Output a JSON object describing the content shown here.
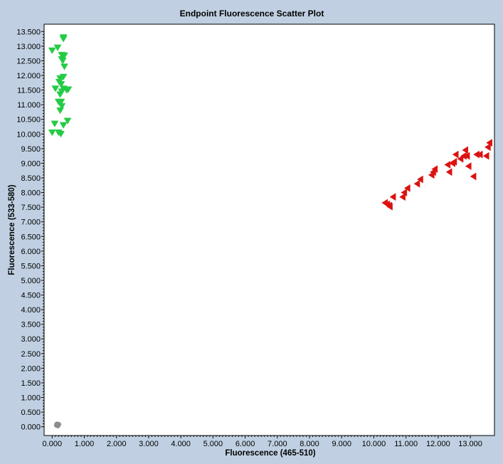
{
  "chart_data": {
    "type": "scatter",
    "title": "Endpoint Fluorescence Scatter Plot",
    "xlabel": "Fluorescence (465-510)",
    "ylabel": "Fluorescence (533-580)",
    "xlim": [
      -0.25,
      13.75
    ],
    "ylim": [
      -0.3,
      13.75
    ],
    "x_ticks": [
      0,
      1,
      2,
      3,
      4,
      5,
      6,
      7,
      8,
      9,
      10,
      11,
      12,
      13
    ],
    "x_tick_labels": [
      "0.000",
      "1.000",
      "2.000",
      "3.000",
      "4.000",
      "5.000",
      "6.000",
      "7.000",
      "8.000",
      "9.000",
      "10.000",
      "11.000",
      "12.000",
      "13.000"
    ],
    "y_ticks": [
      0,
      0.5,
      1,
      1.5,
      2,
      2.5,
      3,
      3.5,
      4,
      4.5,
      5,
      5.5,
      6,
      6.5,
      7,
      7.5,
      8,
      8.5,
      9,
      9.5,
      10,
      10.5,
      11,
      11.5,
      12,
      12.5,
      13,
      13.5
    ],
    "y_tick_labels": [
      "0.000",
      "0.500",
      "1.000",
      "1.500",
      "2.000",
      "2.500",
      "3.000",
      "3.500",
      "4.000",
      "4.500",
      "5.000",
      "5.500",
      "6.000",
      "6.500",
      "7.000",
      "7.500",
      "8.000",
      "8.500",
      "9.000",
      "9.500",
      "10.000",
      "10.500",
      "11.000",
      "11.500",
      "12.000",
      "12.500",
      "13.000",
      "13.500"
    ],
    "grid": false,
    "series": [
      {
        "marker": "triangle-down",
        "color": "#22cc44",
        "points": [
          [
            0.35,
            13.3
          ],
          [
            0.35,
            13.25
          ],
          [
            0.17,
            12.95
          ],
          [
            0.0,
            12.85
          ],
          [
            0.3,
            12.7
          ],
          [
            0.38,
            12.68
          ],
          [
            0.3,
            12.55
          ],
          [
            0.33,
            12.5
          ],
          [
            0.38,
            12.3
          ],
          [
            0.35,
            11.95
          ],
          [
            0.25,
            11.9
          ],
          [
            0.22,
            11.78
          ],
          [
            0.28,
            11.7
          ],
          [
            0.1,
            11.55
          ],
          [
            0.35,
            11.55
          ],
          [
            0.45,
            11.5
          ],
          [
            0.5,
            11.52
          ],
          [
            0.3,
            11.45
          ],
          [
            0.25,
            11.35
          ],
          [
            0.2,
            11.1
          ],
          [
            0.28,
            11.1
          ],
          [
            0.3,
            10.95
          ],
          [
            0.25,
            10.8
          ],
          [
            0.48,
            10.45
          ],
          [
            0.08,
            10.35
          ],
          [
            0.35,
            10.3
          ],
          [
            0.0,
            10.05
          ],
          [
            0.2,
            10.05
          ],
          [
            0.27,
            10.0
          ]
        ]
      },
      {
        "marker": "triangle-left",
        "color": "#dd1111",
        "points": [
          [
            10.35,
            7.65
          ],
          [
            10.42,
            7.6
          ],
          [
            10.48,
            7.55
          ],
          [
            10.5,
            7.52
          ],
          [
            10.6,
            7.85
          ],
          [
            10.9,
            7.85
          ],
          [
            10.95,
            8.0
          ],
          [
            11.05,
            8.15
          ],
          [
            11.35,
            8.3
          ],
          [
            11.45,
            8.45
          ],
          [
            11.8,
            8.6
          ],
          [
            11.85,
            8.7
          ],
          [
            11.9,
            8.8
          ],
          [
            12.3,
            8.95
          ],
          [
            12.35,
            8.7
          ],
          [
            12.45,
            9.0
          ],
          [
            12.5,
            9.05
          ],
          [
            12.55,
            9.3
          ],
          [
            12.7,
            9.15
          ],
          [
            12.8,
            9.25
          ],
          [
            12.85,
            9.45
          ],
          [
            12.9,
            9.25
          ],
          [
            12.95,
            8.9
          ],
          [
            13.1,
            8.55
          ],
          [
            13.2,
            9.3
          ],
          [
            13.3,
            9.3
          ],
          [
            13.5,
            9.25
          ],
          [
            13.55,
            9.55
          ],
          [
            13.6,
            9.7
          ]
        ]
      },
      {
        "marker": "diamond",
        "color": "#8c8c8c",
        "points": [
          [
            0.12,
            0.04
          ],
          [
            0.14,
            0.06
          ],
          [
            0.16,
            0.08
          ],
          [
            0.18,
            0.1
          ],
          [
            0.15,
            0.03
          ],
          [
            0.2,
            0.05
          ],
          [
            0.22,
            0.09
          ],
          [
            0.13,
            0.1
          ],
          [
            0.19,
            0.02
          ]
        ]
      }
    ]
  }
}
